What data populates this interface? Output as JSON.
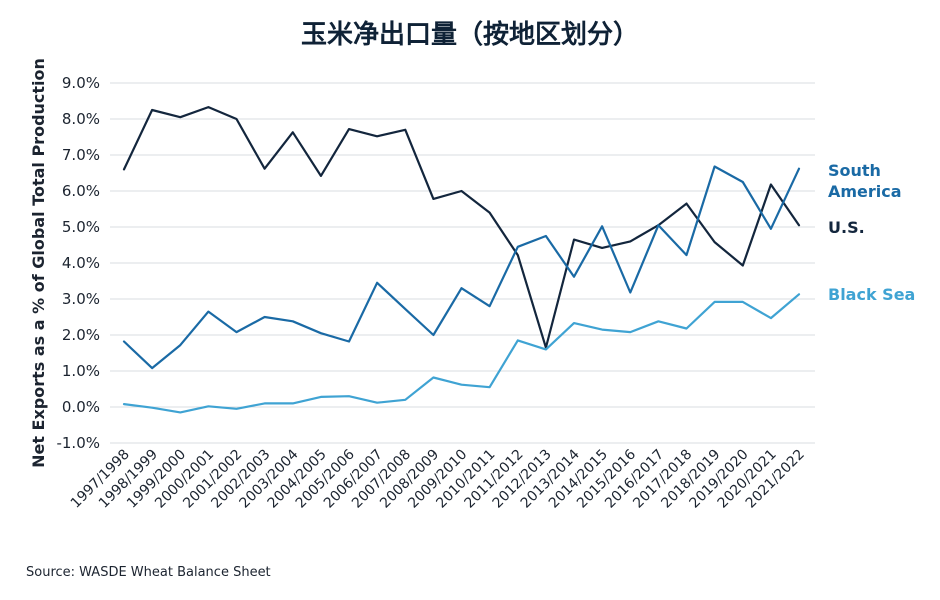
{
  "chart_data": {
    "type": "line",
    "title": "玉米净出口量（按地区划分）",
    "ylabel": "Net Exports as a % of Global Total Production",
    "xlabel": "",
    "source": "Source: WASDE Wheat Balance Sheet",
    "ylim": [
      -1.0,
      9.0
    ],
    "yticks": [
      "-1.0%",
      "0.0%",
      "1.0%",
      "2.0%",
      "3.0%",
      "4.0%",
      "5.0%",
      "6.0%",
      "7.0%",
      "8.0%",
      "9.0%"
    ],
    "grid": true,
    "legend_placement": "right",
    "categories": [
      "1997/1998",
      "1998/1999",
      "1999/2000",
      "2000/2001",
      "2001/2002",
      "2002/2003",
      "2003/2004",
      "2004/2005",
      "2005/2006",
      "2006/2007",
      "2007/2008",
      "2008/2009",
      "2009/2010",
      "2010/2011",
      "2011/2012",
      "2012/2013",
      "2013/2014",
      "2014/2015",
      "2015/2016",
      "2016/2017",
      "2017/2018",
      "2018/2019",
      "2019/2020",
      "2020/2021",
      "2021/2022"
    ],
    "series": [
      {
        "name": "U.S.",
        "legend": [
          "U.S."
        ],
        "color": "#13263d",
        "values": [
          6.6,
          8.25,
          8.05,
          8.33,
          8.0,
          6.62,
          7.63,
          6.42,
          7.72,
          7.52,
          7.7,
          5.78,
          6.0,
          5.4,
          4.22,
          1.65,
          4.65,
          4.42,
          4.6,
          5.05,
          5.65,
          4.58,
          3.93,
          6.18,
          5.05
        ]
      },
      {
        "name": "South America",
        "legend": [
          "South",
          "America"
        ],
        "color": "#1a6aa5",
        "values": [
          1.82,
          1.08,
          1.72,
          2.65,
          2.08,
          2.5,
          2.38,
          2.05,
          1.82,
          3.45,
          2.72,
          2.0,
          3.3,
          2.8,
          4.45,
          4.75,
          3.62,
          5.02,
          3.18,
          5.05,
          4.22,
          6.68,
          6.25,
          4.95,
          6.62
        ]
      },
      {
        "name": "Black Sea",
        "legend": [
          "Black Sea"
        ],
        "color": "#3fa3d3",
        "values": [
          0.08,
          -0.02,
          -0.15,
          0.02,
          -0.05,
          0.1,
          0.1,
          0.28,
          0.3,
          0.12,
          0.2,
          0.82,
          0.62,
          0.55,
          1.85,
          1.6,
          2.33,
          2.15,
          2.08,
          2.38,
          2.18,
          2.92,
          2.92,
          2.47,
          3.13
        ]
      }
    ]
  }
}
